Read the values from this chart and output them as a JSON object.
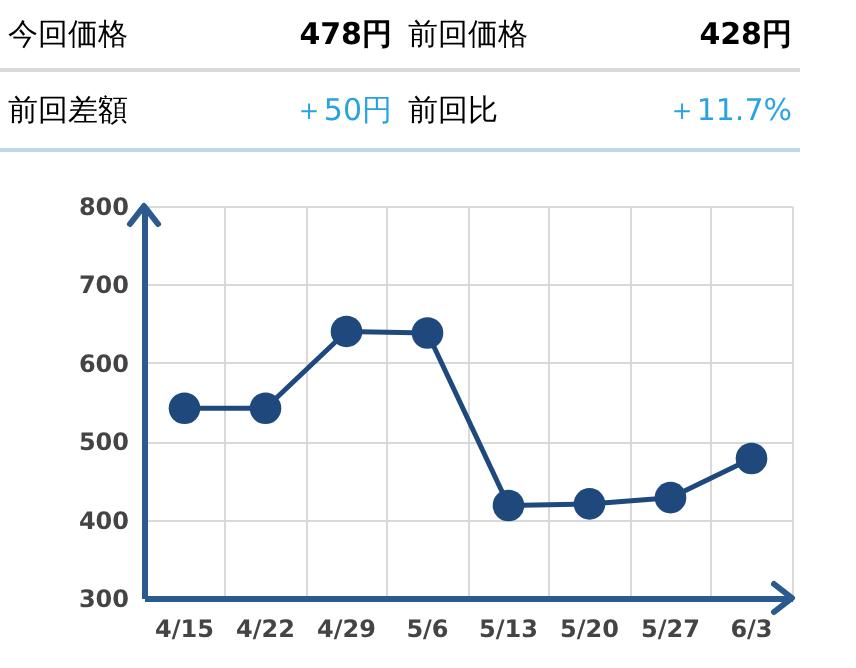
{
  "chart_data": [
    {
      "type": "other",
      "annotations": [
        "今回価格",
        "478円",
        "前回価格",
        "428円",
        "前回差額",
        "＋50円",
        "前回比",
        "＋11.7%"
      ]
    },
    {
      "type": "line",
      "categories": [
        "4/15",
        "4/22",
        "4/29",
        "5/6",
        "5/13",
        "5/20",
        "5/27",
        "6/3"
      ],
      "series": [
        {
          "color": "#1f497d",
          "values": [
            542,
            542,
            640,
            638,
            418,
            420,
            428,
            478
          ]
        }
      ],
      "ylim": [
        300,
        800
      ],
      "yticks": [
        300,
        400,
        500,
        600,
        700,
        800
      ],
      "grid": true,
      "marker": "circle",
      "legend": false
    }
  ]
}
